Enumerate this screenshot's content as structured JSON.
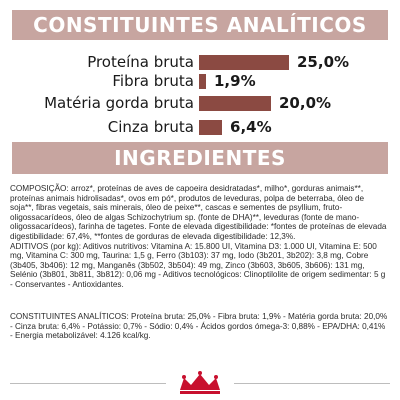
{
  "colors": {
    "band": "#c7a5a0",
    "bar": "#8b4a42",
    "logo": "#c8102e"
  },
  "analytics_title": "CONSTITUINTES ANALÍTICOS",
  "ingredients_title": "INGREDIENTES",
  "chart_data": {
    "type": "bar",
    "orientation": "horizontal",
    "categories": [
      "Proteína bruta",
      "Fibra bruta",
      "Matéria gorda bruta",
      "Cinza bruta"
    ],
    "values": [
      25.0,
      1.9,
      20.0,
      6.4
    ],
    "value_labels": [
      "25,0%",
      "1,9%",
      "20,0%",
      "6,4%"
    ],
    "unit": "%"
  },
  "composition": "COMPOSIÇÃO: arroz*, proteínas de aves de capoeira desidratadas*, milho*, gorduras animais**, proteínas animais hidrolisadas*, ovos em pó*, produtos de leveduras, polpa de beterraba, óleo de soja**, fibras vegetais, sais minerais, óleo de peixe**, cascas e sementes de psyllium, fruto-oligossacarídeos, óleo de algas Schizochytrium sp. (fonte de DHA)**, leveduras (fonte de mano-oligossacarídeos), farinha de tagetes. Fonte de elevada digestibilidade: *fontes de proteínas de elevada digestibilidade: 67,4%, **fontes de gorduras de elevada digestibilidade: 12,3%.",
  "additives": "ADITIVOS (por kg): Aditivos nutritivos: Vitamina A: 15.800 UI, Vitamina D3: 1.000 UI, Vitamina E: 500 mg, Vitamina C: 300 mg, Taurina: 1,5 g, Ferro (3b103): 37 mg, Iodo (3b201, 3b202): 3,8 mg, Cobre (3b405, 3b406): 12 mg, Manganês (3b502, 3b504): 49 mg, Zinco (3b603, 3b605, 3b606): 131 mg, Selénio (3b801, 3b811, 3b812): 0,06 mg - Aditivos tecnológicos: Clinoptilolite de origem sedimentar: 5 g - Conservantes - Antioxidantes.",
  "constituents_text": "CONSTITUINTES ANALÍTICOS: Proteína bruta: 25,0% - Fibra bruta: 1,9% - Matéria gorda bruta: 20,0% - Cinza bruta: 6,4% - Potássio: 0,7% - Sódio: 0,4% - Ácidos gordos ómega-3: 0,88% - EPA/DHA: 0,41% - Energia metabolizável: 4.126 kcal/kg."
}
